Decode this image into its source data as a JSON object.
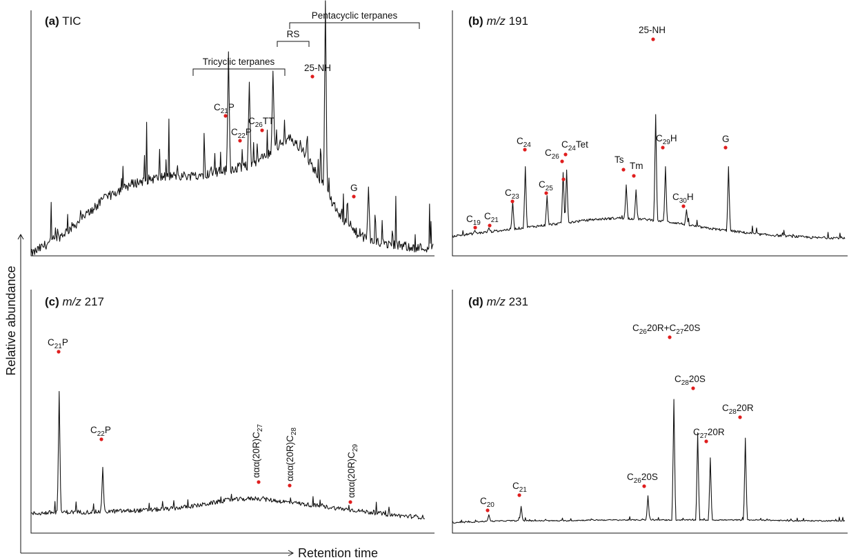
{
  "axes": {
    "ylabel": "Relative abundance",
    "xlabel": "Retention time"
  },
  "colors": {
    "trace": "#111111",
    "peak_marker": "#e01e1e"
  },
  "chart_data": [
    {
      "type": "line",
      "panel": "(a)",
      "title": "TIC",
      "x": [
        0,
        20,
        40,
        60,
        80,
        100,
        120,
        140,
        160,
        180,
        200,
        220,
        240,
        260,
        280,
        300,
        320,
        340,
        360,
        380,
        400,
        420,
        440,
        460,
        480,
        500,
        520,
        540,
        560
      ],
      "y": [
        1,
        8,
        14,
        22,
        31,
        40,
        47,
        52,
        55,
        57,
        58,
        58,
        59,
        61,
        63,
        65,
        70,
        78,
        86,
        75,
        58,
        38,
        22,
        14,
        10,
        8,
        7,
        6,
        6
      ],
      "groups": [
        {
          "label": "Tricyclic terpanes"
        },
        {
          "label": "RS"
        },
        {
          "label": "Pentacyclic terpanes"
        }
      ],
      "peaks": [
        {
          "label": "C",
          "sub": "21",
          "suffix": "P",
          "x": 275,
          "y": 148
        },
        {
          "label": "C",
          "sub": "22",
          "suffix": "P",
          "x": 304,
          "y": 126
        },
        {
          "label": "C",
          "sub": "26",
          "suffix": "TT",
          "x": 337,
          "y": 134
        },
        {
          "label": "25-NH",
          "sub": "",
          "suffix": "",
          "x": 410,
          "y": 185
        },
        {
          "label": "G",
          "sub": "",
          "suffix": "",
          "x": 470,
          "y": 50
        }
      ]
    },
    {
      "type": "line",
      "panel": "(b)",
      "title": "m/z 191",
      "x": [
        0,
        40,
        80,
        120,
        160,
        200,
        240,
        280,
        320,
        360,
        400,
        440,
        480,
        520,
        560
      ],
      "y": [
        8,
        12,
        16,
        20,
        24,
        28,
        30,
        28,
        24,
        18,
        14,
        10,
        8,
        6,
        6
      ],
      "peaks": [
        {
          "label": "C",
          "sub": "19",
          "suffix": "",
          "x": 32,
          "y": 15
        },
        {
          "label": "C",
          "sub": "21",
          "suffix": "",
          "x": 52,
          "y": 18
        },
        {
          "label": "C",
          "sub": "23",
          "suffix": "",
          "x": 86,
          "y": 50
        },
        {
          "label": "C",
          "sub": "24",
          "suffix": "",
          "x": 104,
          "y": 92
        },
        {
          "label": "C",
          "sub": "25",
          "suffix": "",
          "x": 135,
          "y": 57
        },
        {
          "label": "C",
          "sub": "26",
          "suffix": "",
          "x": 158,
          "y": 85
        },
        {
          "label": "C",
          "sub": "24",
          "suffix": "Tet",
          "x": 163,
          "y": 88
        },
        {
          "label": "Ts",
          "sub": "",
          "suffix": "",
          "x": 248,
          "y": 70
        },
        {
          "label": "Tm",
          "sub": "",
          "suffix": "",
          "x": 262,
          "y": 64
        },
        {
          "label": "25-NH",
          "sub": "",
          "suffix": "",
          "x": 290,
          "y": 155
        },
        {
          "label": "C",
          "sub": "29",
          "suffix": "H",
          "x": 304,
          "y": 92
        },
        {
          "label": "C",
          "sub": "30",
          "suffix": "H",
          "x": 334,
          "y": 40
        },
        {
          "label": "G",
          "sub": "",
          "suffix": "",
          "x": 394,
          "y": 92
        }
      ]
    },
    {
      "type": "line",
      "panel": "(c)",
      "title": "m/z 217",
      "x": [
        0,
        40,
        80,
        120,
        160,
        200,
        240,
        280,
        320,
        360,
        400,
        440,
        480,
        520,
        560
      ],
      "y": [
        8,
        10,
        10,
        11,
        12,
        14,
        18,
        24,
        26,
        22,
        18,
        14,
        10,
        6,
        4
      ],
      "peaks": [
        {
          "label": "C",
          "sub": "21",
          "suffix": "P",
          "x": 40,
          "y": 150
        },
        {
          "label": "C",
          "sub": "22",
          "suffix": "P",
          "x": 102,
          "y": 62
        },
        {
          "label": "ααα(20R)C",
          "sub": "27",
          "suffix": "",
          "x": 330,
          "y": 28,
          "vertical": true
        },
        {
          "label": "ααα(20R)C",
          "sub": "28",
          "suffix": "",
          "x": 375,
          "y": 22,
          "vertical": true
        },
        {
          "label": "ααα(20R)C",
          "sub": "29",
          "suffix": "",
          "x": 462,
          "y": 9,
          "vertical": true
        }
      ]
    },
    {
      "type": "line",
      "panel": "(d)",
      "title": "m/z 231",
      "x": [
        0,
        40,
        80,
        120,
        160,
        200,
        240,
        280,
        320,
        360,
        400,
        440,
        480,
        520,
        560
      ],
      "y": [
        6,
        8,
        9,
        9,
        9,
        10,
        10,
        10,
        10,
        10,
        10,
        10,
        9,
        9,
        9
      ],
      "peaks": [
        {
          "label": "C",
          "sub": "20",
          "suffix": "",
          "x": 52,
          "y": 17
        },
        {
          "label": "C",
          "sub": "21",
          "suffix": "",
          "x": 98,
          "y": 28
        },
        {
          "label": "C",
          "sub": "26",
          "suffix": "20S",
          "x": 279,
          "y": 42
        },
        {
          "label": "C",
          "sub": "26",
          "suffix": "20R+C27 20S",
          "x": 316,
          "y": 169
        },
        {
          "label": "C",
          "sub": "28",
          "suffix": "20S",
          "x": 350,
          "y": 125
        },
        {
          "label": "C",
          "sub": "27",
          "suffix": "20R",
          "x": 368,
          "y": 92
        },
        {
          "label": "C",
          "sub": "28",
          "suffix": "20R",
          "x": 418,
          "y": 118
        }
      ]
    }
  ],
  "labels": {
    "a": {
      "bold": "(a)",
      "rest": " TIC"
    },
    "b": {
      "bold": "(b)",
      "italic": "m/z",
      "rest": " 191"
    },
    "c": {
      "bold": "(c)",
      "italic": "m/z",
      "rest": " 217"
    },
    "d": {
      "bold": "(d)",
      "italic": "m/z",
      "rest": " 231"
    },
    "a_peaks": [
      "C",
      "21",
      "P",
      "C",
      "22",
      "P",
      "C",
      "26",
      "TT",
      "25-NH",
      "G"
    ],
    "b_peaks": [
      "C",
      "19",
      "C",
      "21",
      "C",
      "23",
      "C",
      "24",
      "C",
      "25",
      "C",
      "26",
      "C",
      "24",
      "Tet",
      "Ts",
      "Tm",
      "25-NH",
      "C",
      "29",
      "H",
      "C",
      "30",
      "H",
      "G"
    ],
    "c_peaks": [
      "C",
      "21",
      "P",
      "C",
      "22",
      "P",
      "ααα(20R)C",
      "27",
      "ααα(20R)C",
      "28",
      "ααα(20R)C",
      "29"
    ],
    "d_peaks": [
      "C",
      "20",
      "C",
      "21",
      "C",
      "26",
      "20S",
      "C",
      "26",
      "20R+C",
      "27",
      "20S",
      "C",
      "28",
      "20S",
      "C",
      "27",
      "20R",
      "C",
      "28",
      "20R"
    ]
  }
}
